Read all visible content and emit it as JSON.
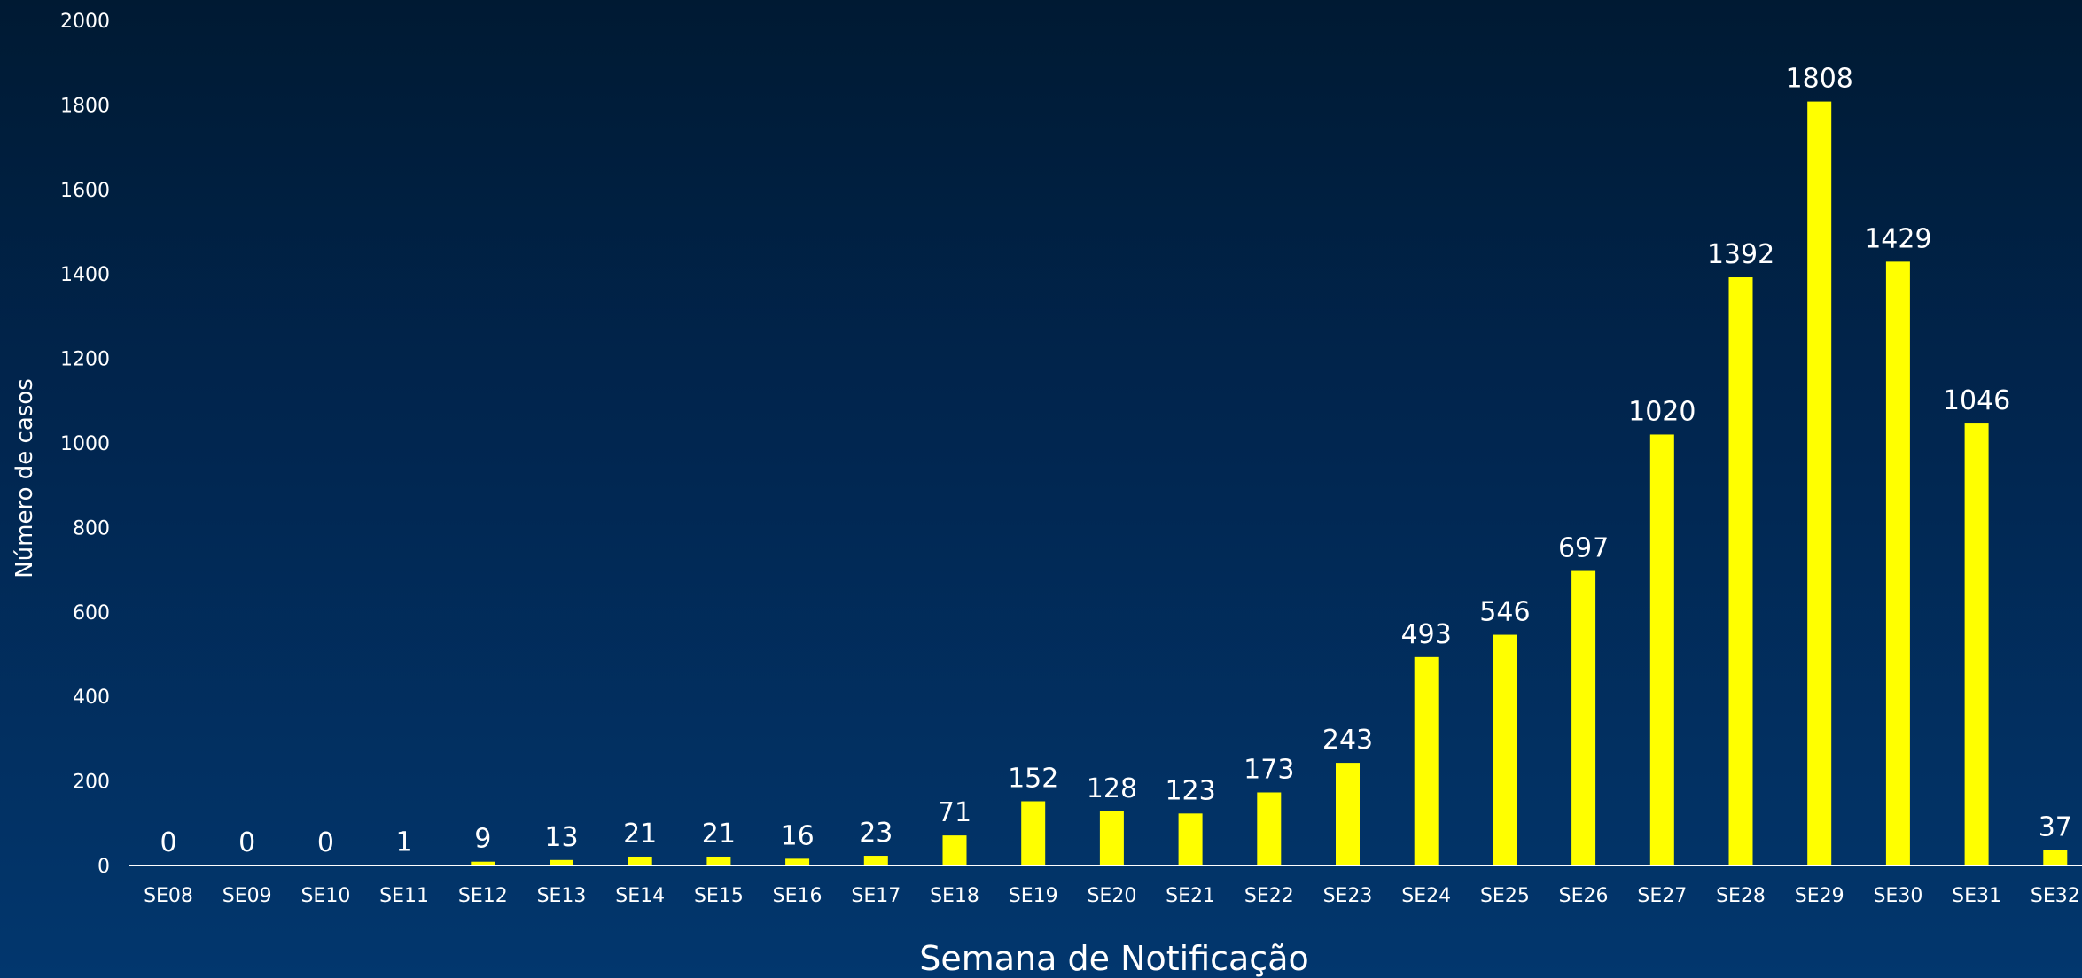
{
  "colors": {
    "bar": "#ffff00",
    "text": "#ffffff",
    "axis_line": "#ffffff"
  },
  "chart_data": {
    "type": "bar",
    "title": "",
    "xlabel": "Semana de Notificação",
    "ylabel": "Número de casos",
    "ylim": [
      0,
      2000
    ],
    "yticks": [
      0,
      200,
      400,
      600,
      800,
      1000,
      1200,
      1400,
      1600,
      1800,
      2000
    ],
    "grid": false,
    "categories": [
      "SE08",
      "SE09",
      "SE10",
      "SE11",
      "SE12",
      "SE13",
      "SE14",
      "SE15",
      "SE16",
      "SE17",
      "SE18",
      "SE19",
      "SE20",
      "SE21",
      "SE22",
      "SE23",
      "SE24",
      "SE25",
      "SE26",
      "SE27",
      "SE28",
      "SE29",
      "SE30",
      "SE31",
      "SE32"
    ],
    "values": [
      0,
      0,
      0,
      1,
      9,
      13,
      21,
      21,
      16,
      23,
      71,
      152,
      128,
      123,
      173,
      243,
      493,
      546,
      697,
      1020,
      1392,
      1808,
      1429,
      1046,
      37
    ]
  }
}
